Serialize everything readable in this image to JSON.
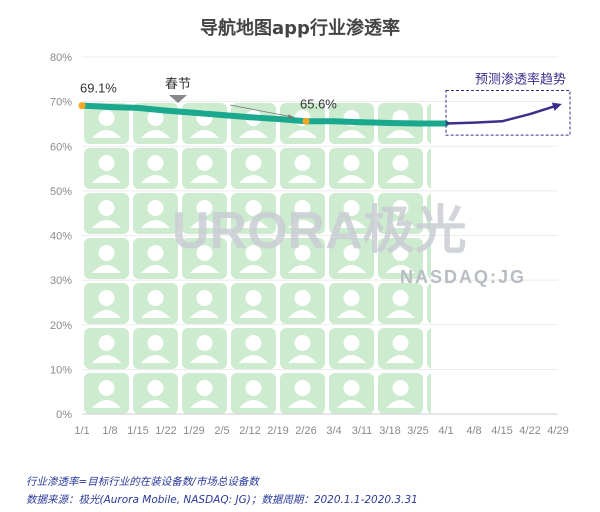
{
  "chart_data": {
    "type": "line",
    "title": "导航地图app行业渗透率",
    "y_ticks": [
      "0%",
      "10%",
      "20%",
      "30%",
      "40%",
      "50%",
      "60%",
      "70%",
      "80%"
    ],
    "ylim": [
      0,
      80
    ],
    "x_ticks": [
      "1/1",
      "1/8",
      "1/15",
      "1/22",
      "1/29",
      "2/5",
      "2/12",
      "2/19",
      "2/26",
      "3/4",
      "3/11",
      "3/18",
      "3/25",
      "4/1",
      "4/8",
      "4/15",
      "4/22",
      "4/29"
    ],
    "x_days_start": "1/1",
    "series": [
      {
        "type": "actual",
        "color": "#1aa88e",
        "points": [
          [
            "1/1",
            69.1
          ],
          [
            "1/8",
            68.8
          ],
          [
            "1/15",
            68.6
          ],
          [
            "1/22",
            68.0
          ],
          [
            "1/29",
            67.5
          ],
          [
            "2/5",
            67.0
          ],
          [
            "2/12",
            66.5
          ],
          [
            "2/19",
            66.1
          ],
          [
            "2/26",
            65.6
          ],
          [
            "3/4",
            65.6
          ],
          [
            "3/11",
            65.4
          ],
          [
            "3/18",
            65.2
          ],
          [
            "3/25",
            65.1
          ],
          [
            "4/1",
            65.1
          ]
        ]
      },
      {
        "name": "预测渗透率趋势",
        "type": "forecast",
        "color": "#3f2d8c",
        "points": [
          [
            "4/1",
            65.1
          ],
          [
            "4/8",
            65.3
          ],
          [
            "4/15",
            65.6
          ],
          [
            "4/22",
            67.2
          ],
          [
            "4/29",
            69.2
          ]
        ]
      }
    ],
    "annotations": [
      {
        "label": "69.1%",
        "at": [
          "1/1",
          69.1
        ]
      },
      {
        "label": "65.6%",
        "at": [
          "2/26",
          65.6
        ]
      },
      {
        "label": "春节",
        "at": "1/25"
      }
    ],
    "forecast_label": "预测渗透率趋势",
    "colors": {
      "marker": "#f5a623",
      "axis_text": "#8a8a8a",
      "grid": "#e6e6e6"
    }
  },
  "watermark": {
    "brand": "URORA极光",
    "sub": "NASDAQ:JG"
  },
  "footnotes": [
    "行业渗透率=目标行业的在装设备数/市场总设备数",
    "数据来源：极光(Aurora Mobile, NASDAQ: JG)；数据周期：2020.1.1-2020.3.31"
  ]
}
